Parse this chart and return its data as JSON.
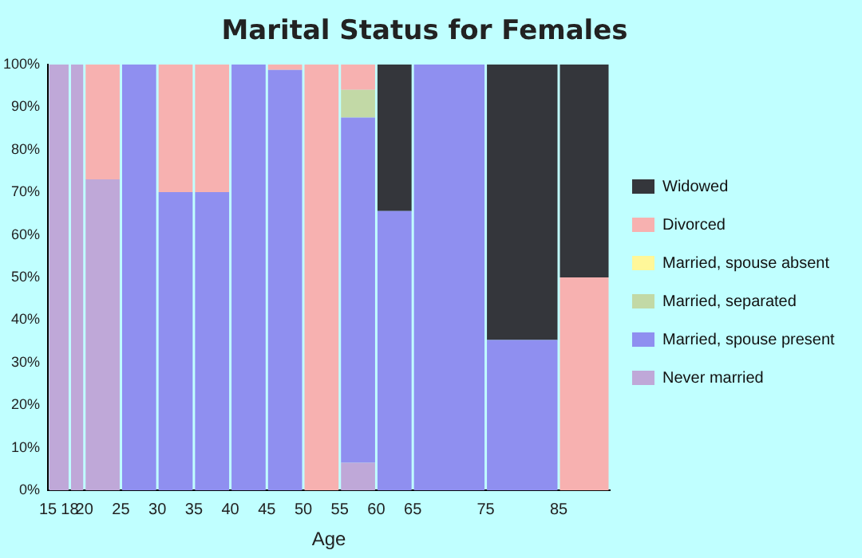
{
  "chart_data": {
    "type": "bar",
    "stacked": true,
    "title": "Marital Status for Females",
    "xlabel": "Age",
    "x": [
      16.5,
      19,
      22.5,
      27.5,
      32.5,
      37.5,
      42.5,
      47.5,
      52.5,
      57.5,
      62.5,
      70,
      80,
      88.5
    ],
    "xlim": [
      15,
      92
    ],
    "xticks": [
      15,
      18,
      20,
      25,
      30,
      35,
      40,
      45,
      50,
      55,
      60,
      65,
      75,
      85
    ],
    "ylim": [
      0,
      100
    ],
    "yticks": [
      {
        "value": 0,
        "label": "0%"
      },
      {
        "value": 10,
        "label": "10%"
      },
      {
        "value": 20,
        "label": "20%"
      },
      {
        "value": 30,
        "label": "30%"
      },
      {
        "value": 40,
        "label": "40%"
      },
      {
        "value": 50,
        "label": "50%"
      },
      {
        "value": 60,
        "label": "60%"
      },
      {
        "value": 70,
        "label": "70%"
      },
      {
        "value": 80,
        "label": "80%"
      },
      {
        "value": 90,
        "label": "90%"
      },
      {
        "value": 100,
        "label": "100%"
      }
    ],
    "grid": false,
    "legend": "right",
    "series": [
      {
        "name": "Never married",
        "color": "#bfa8d8",
        "values": [
          100,
          100,
          73,
          null,
          null,
          null,
          null,
          null,
          null,
          6.5,
          null,
          null,
          null,
          null
        ]
      },
      {
        "name": "Married, spouse present",
        "color": "#8f8ff0",
        "values": [
          null,
          null,
          null,
          100,
          70,
          70,
          100,
          98.7,
          null,
          81,
          65.6,
          100,
          35.3,
          null
        ]
      },
      {
        "name": "Married, separated",
        "color": "#c2d9a6",
        "values": [
          null,
          null,
          null,
          null,
          null,
          null,
          null,
          null,
          null,
          6.5,
          null,
          null,
          null,
          null
        ]
      },
      {
        "name": "Married, spouse absent",
        "color": "#fff799",
        "values": [
          null,
          null,
          null,
          null,
          null,
          null,
          null,
          null,
          null,
          null,
          null,
          null,
          null,
          null
        ]
      },
      {
        "name": "Divorced",
        "color": "#f7b1b0",
        "values": [
          null,
          null,
          27,
          null,
          30,
          30,
          null,
          1.3,
          100,
          6,
          null,
          null,
          null,
          50
        ]
      },
      {
        "name": "Widowed",
        "color": "#34363b",
        "values": [
          null,
          null,
          null,
          null,
          null,
          null,
          null,
          null,
          null,
          null,
          34.4,
          null,
          64.7,
          50
        ]
      }
    ]
  }
}
